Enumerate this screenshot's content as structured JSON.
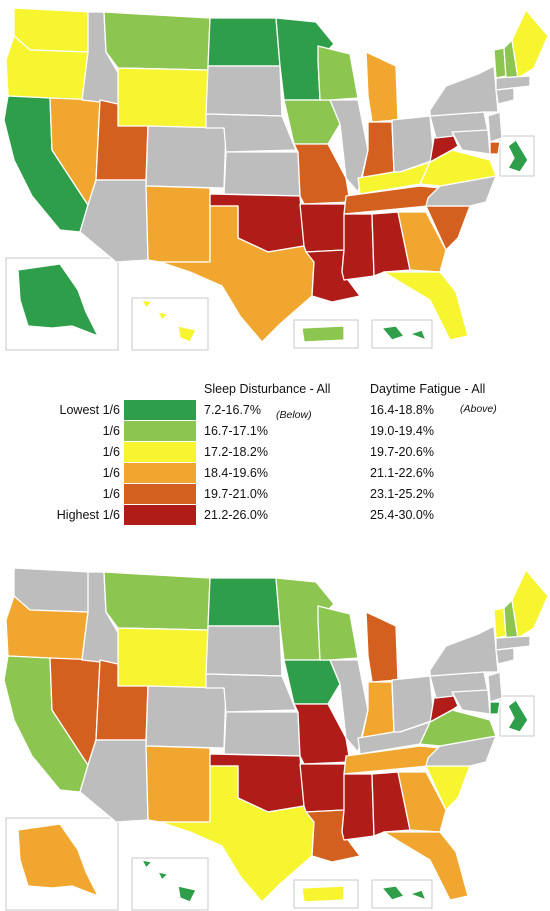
{
  "legend": {
    "header_sleep": "Sleep Disturbance - All",
    "header_fatigue": "Daytime Fatigue - All",
    "note_sleep": "(Below)",
    "note_fatigue": "(Above)",
    "rows": [
      {
        "label": "Lowest 1/6",
        "color": "#2e9e4a",
        "sleep": "7.2-16.7%",
        "fatigue": "16.4-18.8%"
      },
      {
        "label": "1/6",
        "color": "#8cc54f",
        "sleep": "16.7-17.1%",
        "fatigue": "19.0-19.4%"
      },
      {
        "label": "1/6",
        "color": "#f6f530",
        "sleep": "17.2-18.2%",
        "fatigue": "19.7-20.6%"
      },
      {
        "label": "1/6",
        "color": "#f1a72f",
        "sleep": "18.4-19.6%",
        "fatigue": "21.1-22.6%"
      },
      {
        "label": "1/6",
        "color": "#d4601f",
        "sleep": "19.7-21.0%",
        "fatigue": "23.1-25.2%"
      },
      {
        "label": "Highest 1/6",
        "color": "#b01c17",
        "sleep": "21.2-26.0%",
        "fatigue": "25.4-30.0%"
      }
    ]
  },
  "maps": [
    {
      "name": "sleep-disturbance-map",
      "states": {
        "WA": "#f6f530",
        "OR": "#f6f530",
        "CA": "#2e9e4a",
        "NV": "#f1a72f",
        "ID": "#bdbdbd",
        "MT": "#8cc54f",
        "WY": "#f6f530",
        "UT": "#d4601f",
        "AZ": "#bdbdbd",
        "CO": "#bdbdbd",
        "NM": "#f1a72f",
        "ND": "#2e9e4a",
        "SD": "#bdbdbd",
        "NE": "#bdbdbd",
        "KS": "#bdbdbd",
        "OK": "#b01c17",
        "TX": "#f1a72f",
        "MN": "#2e9e4a",
        "IA": "#8cc54f",
        "MO": "#d4601f",
        "AR": "#b01c17",
        "LA": "#b01c17",
        "WI": "#8cc54f",
        "IL": "#bdbdbd",
        "MI": "#f1a72f",
        "IN": "#d4601f",
        "OH": "#bdbdbd",
        "KY": "#f6f530",
        "TN": "#d4601f",
        "MS": "#b01c17",
        "AL": "#b01c17",
        "GA": "#f1a72f",
        "FL": "#f6f530",
        "SC": "#d4601f",
        "NC": "#bdbdbd",
        "VA": "#f6f530",
        "WV": "#b01c17",
        "PA": "#bdbdbd",
        "NY": "#bdbdbd",
        "VT": "#8cc54f",
        "NH": "#8cc54f",
        "ME": "#f6f530",
        "MA": "#bdbdbd",
        "CT": "#bdbdbd",
        "NJ": "#bdbdbd",
        "DE": "#d4601f",
        "MD": "#bdbdbd",
        "DC": "#2e9e4a",
        "AK": "#2e9e4a",
        "HI": "#f6f530",
        "PR": "#8cc54f",
        "VI": "#2e9e4a"
      }
    },
    {
      "name": "daytime-fatigue-map",
      "states": {
        "WA": "#bdbdbd",
        "OR": "#f1a72f",
        "CA": "#8cc54f",
        "NV": "#d4601f",
        "ID": "#bdbdbd",
        "MT": "#8cc54f",
        "WY": "#f6f530",
        "UT": "#d4601f",
        "AZ": "#bdbdbd",
        "CO": "#bdbdbd",
        "NM": "#f1a72f",
        "ND": "#2e9e4a",
        "SD": "#bdbdbd",
        "NE": "#bdbdbd",
        "KS": "#bdbdbd",
        "OK": "#b01c17",
        "TX": "#f6f530",
        "MN": "#8cc54f",
        "IA": "#2e9e4a",
        "MO": "#b01c17",
        "AR": "#b01c17",
        "LA": "#d4601f",
        "WI": "#8cc54f",
        "IL": "#bdbdbd",
        "MI": "#d4601f",
        "IN": "#f1a72f",
        "OH": "#bdbdbd",
        "KY": "#bdbdbd",
        "TN": "#f1a72f",
        "MS": "#b01c17",
        "AL": "#b01c17",
        "GA": "#f1a72f",
        "FL": "#f1a72f",
        "SC": "#f6f530",
        "NC": "#bdbdbd",
        "VA": "#8cc54f",
        "WV": "#b01c17",
        "PA": "#bdbdbd",
        "NY": "#bdbdbd",
        "VT": "#f6f530",
        "NH": "#8cc54f",
        "ME": "#f6f530",
        "MA": "#bdbdbd",
        "CT": "#bdbdbd",
        "NJ": "#bdbdbd",
        "DE": "#2e9e4a",
        "MD": "#bdbdbd",
        "DC": "#2e9e4a",
        "AK": "#f1a72f",
        "HI": "#2e9e4a",
        "PR": "#f6f530",
        "VI": "#2e9e4a"
      }
    }
  ]
}
